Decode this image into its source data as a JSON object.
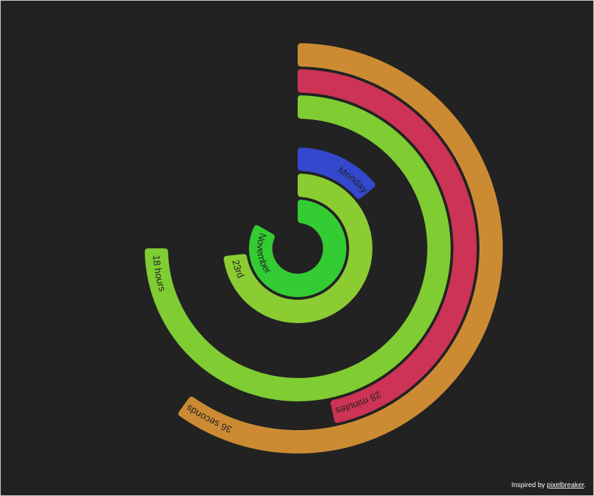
{
  "colors": {
    "background": "#222222",
    "label": "#222222",
    "credit_text": "#ffffff"
  },
  "rings": [
    {
      "id": "seconds",
      "label": "36 seconds",
      "value": 36,
      "max": 60,
      "color": "#cc8b33"
    },
    {
      "id": "minutes",
      "label": "28 minutes",
      "value": 28,
      "max": 60,
      "color": "#cc3355"
    },
    {
      "id": "hours",
      "label": "18 hours",
      "value": 18,
      "max": 24,
      "color": "#7fcc33"
    },
    {
      "id": "weekday",
      "label": "Monday",
      "value": 1,
      "max": 7,
      "color": "#3348cc"
    },
    {
      "id": "month",
      "label": "November",
      "value": 10,
      "max": 12,
      "color": "#33cc33"
    },
    {
      "id": "day",
      "label": "23rd",
      "value": 22,
      "max": 30,
      "color": "#8bcc33"
    }
  ],
  "credit": {
    "prefix": "Inspired by",
    "link": "pixelbreaker",
    "suffix": "."
  }
}
